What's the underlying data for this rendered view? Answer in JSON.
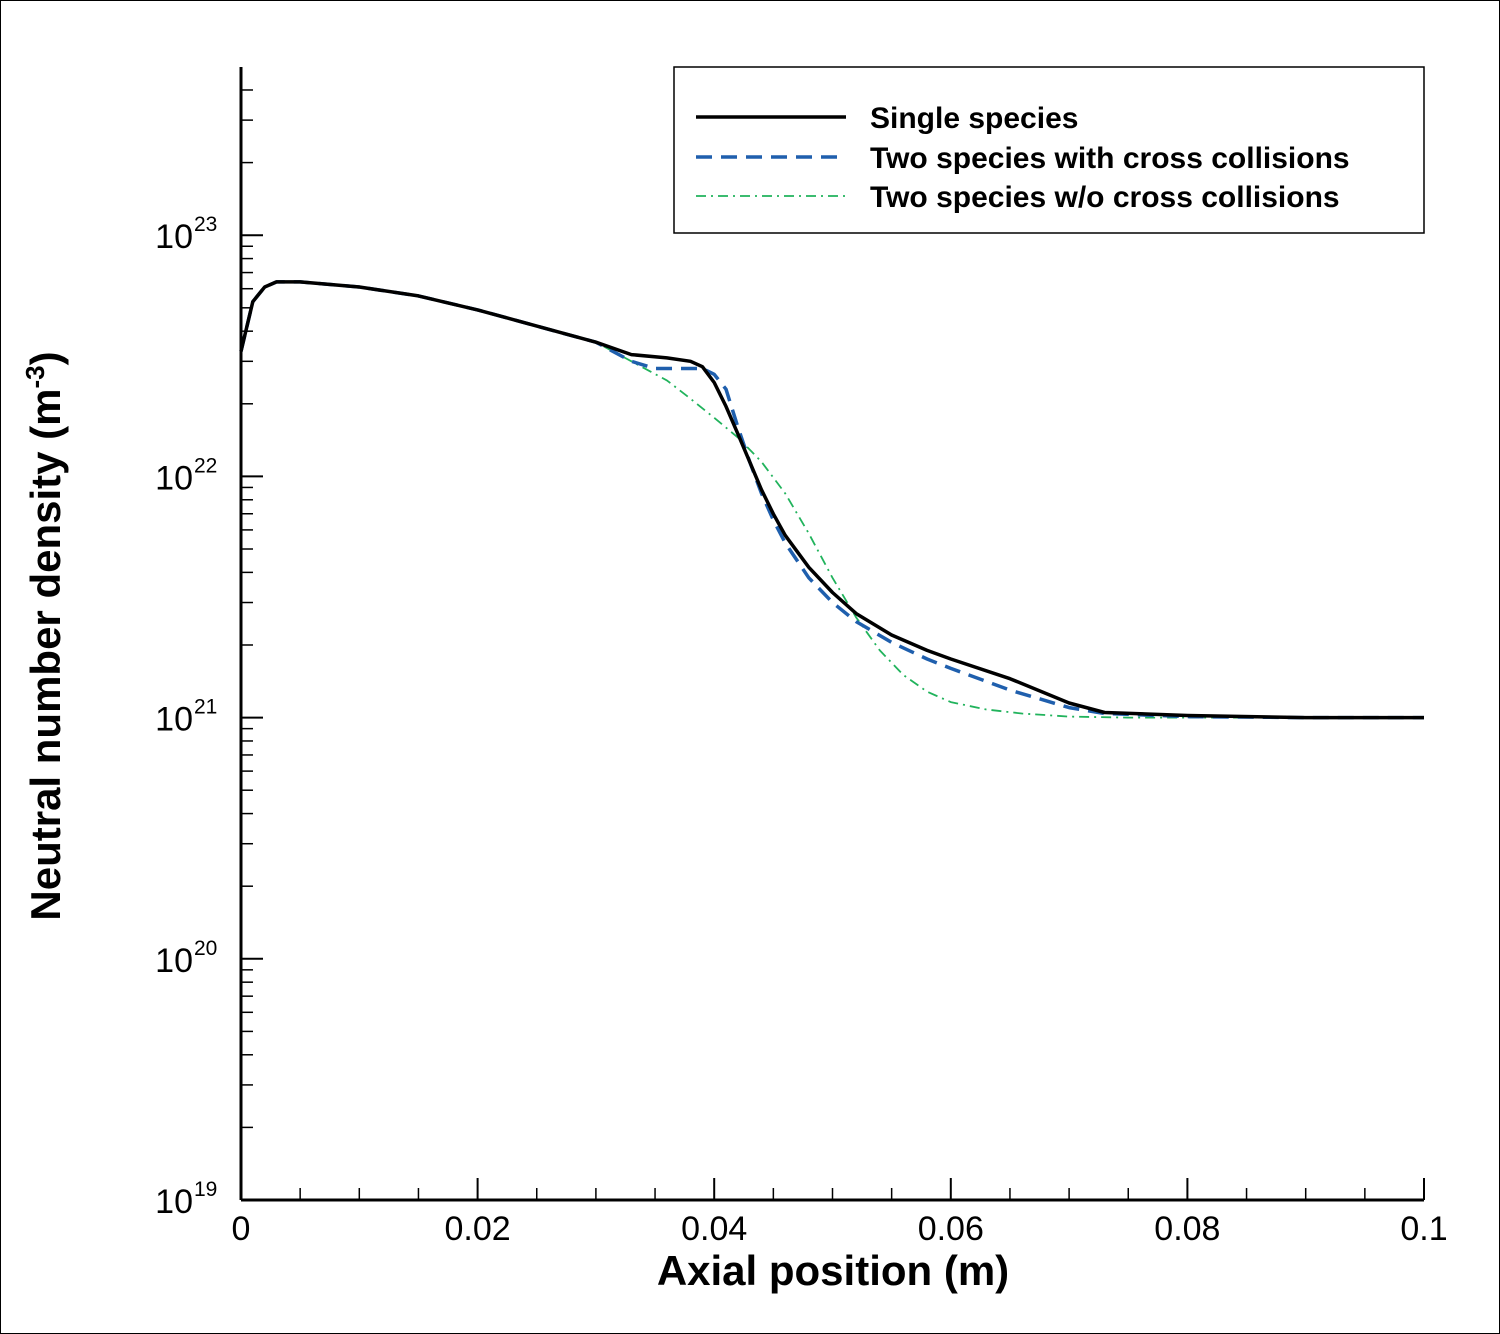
{
  "chart_data": {
    "type": "line",
    "xlabel": "Axial position (m)",
    "ylabel": "Neutral number density (m",
    "ylabel_sup": "-3",
    "ylabel_close": ")",
    "xlim": [
      0,
      0.1
    ],
    "ylim": [
      1e+19,
      5e+23
    ],
    "yscale": "log",
    "grid": false,
    "legend_position": "top-right",
    "x_ticks": [
      {
        "value": 0,
        "label": "0"
      },
      {
        "value": 0.02,
        "label": "0.02"
      },
      {
        "value": 0.04,
        "label": "0.04"
      },
      {
        "value": 0.06,
        "label": "0.06"
      },
      {
        "value": 0.08,
        "label": "0.08"
      },
      {
        "value": 0.1,
        "label": "0.1"
      }
    ],
    "y_ticks": [
      {
        "value": 1e+19,
        "base": "10",
        "exp": "19"
      },
      {
        "value": 1e+20,
        "base": "10",
        "exp": "20"
      },
      {
        "value": 1e+21,
        "base": "10",
        "exp": "21"
      },
      {
        "value": 1e+22,
        "base": "10",
        "exp": "22"
      },
      {
        "value": 1e+23,
        "base": "10",
        "exp": "23"
      }
    ],
    "series": [
      {
        "name": "Single species",
        "color": "#000000",
        "style": "solid",
        "x": [
          0,
          0.001,
          0.002,
          0.003,
          0.005,
          0.01,
          0.015,
          0.02,
          0.025,
          0.03,
          0.033,
          0.036,
          0.038,
          0.039,
          0.04,
          0.041,
          0.042,
          0.043,
          0.044,
          0.045,
          0.046,
          0.048,
          0.05,
          0.052,
          0.055,
          0.058,
          0.06,
          0.065,
          0.07,
          0.073,
          0.08,
          0.09,
          0.1
        ],
        "y": [
          3.3e+22,
          5.3e+22,
          6.1e+22,
          6.4e+22,
          6.4e+22,
          6.1e+22,
          5.6e+22,
          4.9e+22,
          4.2e+22,
          3.6e+22,
          3.2e+22,
          3.1e+22,
          3e+22,
          2.85e+22,
          2.45e+22,
          1.95e+22,
          1.5e+22,
          1.15e+22,
          8.8e+21,
          7e+21,
          5.7e+21,
          4.2e+21,
          3.3e+21,
          2.7e+21,
          2.2e+21,
          1.9e+21,
          1.75e+21,
          1.45e+21,
          1.15e+21,
          1.05e+21,
          1.02e+21,
          1e+21,
          1e+21
        ]
      },
      {
        "name": "Two species with cross collisions",
        "color": "#1f5fad",
        "style": "dashed",
        "x": [
          0,
          0.001,
          0.002,
          0.003,
          0.005,
          0.01,
          0.015,
          0.02,
          0.025,
          0.03,
          0.033,
          0.035,
          0.038,
          0.039,
          0.04,
          0.041,
          0.042,
          0.043,
          0.044,
          0.045,
          0.046,
          0.048,
          0.05,
          0.052,
          0.055,
          0.058,
          0.06,
          0.065,
          0.07,
          0.073,
          0.08,
          0.09,
          0.1
        ],
        "y": [
          3.3e+22,
          5.3e+22,
          6.1e+22,
          6.4e+22,
          6.4e+22,
          6.1e+22,
          5.6e+22,
          4.9e+22,
          4.2e+22,
          3.6e+22,
          3e+22,
          2.8e+22,
          2.8e+22,
          2.8e+22,
          2.65e+22,
          2.3e+22,
          1.6e+22,
          1.15e+22,
          8.5e+21,
          6.6e+21,
          5.3e+21,
          3.8e+21,
          3e+21,
          2.5e+21,
          2.05e+21,
          1.75e+21,
          1.6e+21,
          1.3e+21,
          1.1e+21,
          1.04e+21,
          1.01e+21,
          1e+21,
          1e+21
        ]
      },
      {
        "name": "Two species w/o cross collisions",
        "color": "#21b35c",
        "style": "dashdot",
        "x": [
          0,
          0.001,
          0.002,
          0.003,
          0.005,
          0.01,
          0.015,
          0.02,
          0.025,
          0.03,
          0.033,
          0.036,
          0.038,
          0.04,
          0.042,
          0.044,
          0.046,
          0.048,
          0.05,
          0.052,
          0.054,
          0.056,
          0.058,
          0.06,
          0.063,
          0.066,
          0.07,
          0.075,
          0.08,
          0.09,
          0.1
        ],
        "y": [
          3.3e+22,
          5.3e+22,
          6.1e+22,
          6.4e+22,
          6.4e+22,
          6.1e+22,
          5.6e+22,
          4.9e+22,
          4.2e+22,
          3.6e+22,
          3e+22,
          2.5e+22,
          2.1e+22,
          1.75e+22,
          1.45e+22,
          1.15e+22,
          8.5e+21,
          5.8e+21,
          3.8e+21,
          2.6e+21,
          1.9e+21,
          1.5e+21,
          1.28e+21,
          1.16e+21,
          1.08e+21,
          1.04e+21,
          1.01e+21,
          1e+21,
          1e+21,
          1e+21,
          1e+21
        ]
      }
    ]
  }
}
